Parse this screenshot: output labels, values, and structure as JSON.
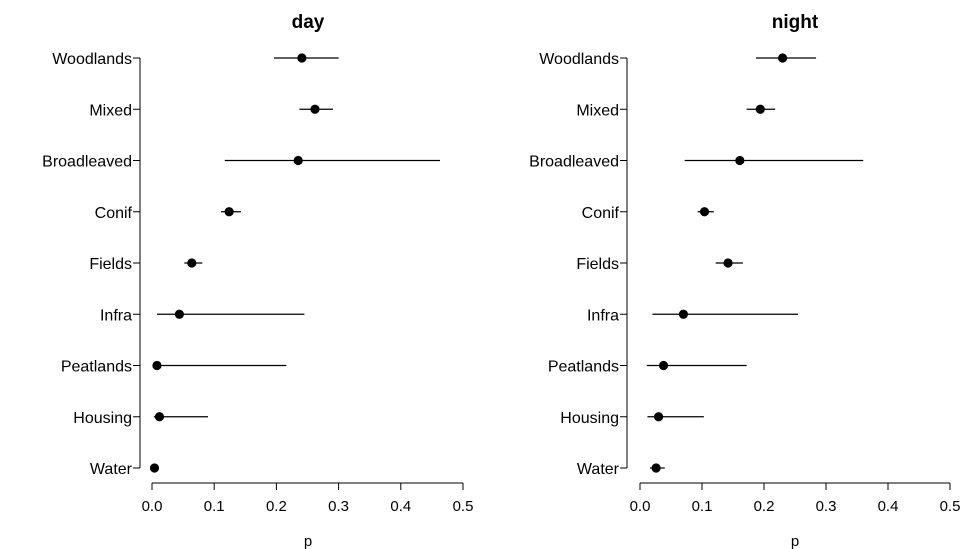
{
  "chart_data": [
    {
      "type": "scatter",
      "title": "day",
      "xlabel": "p",
      "ylabel": "",
      "xlim": [
        0,
        0.5
      ],
      "xticks": [
        "0.0",
        "0.1",
        "0.2",
        "0.3",
        "0.4",
        "0.5"
      ],
      "categories": [
        "Woodlands",
        "Mixed",
        "Broadleaved",
        "Conif",
        "Fields",
        "Infra",
        "Peatlands",
        "Housing",
        "Water"
      ],
      "estimate": [
        0.241,
        0.262,
        0.235,
        0.124,
        0.064,
        0.044,
        0.008,
        0.012,
        0.004
      ],
      "lower": [
        0.196,
        0.237,
        0.117,
        0.111,
        0.052,
        0.008,
        0.002,
        0.003,
        0.001
      ],
      "upper": [
        0.3,
        0.291,
        0.463,
        0.143,
        0.081,
        0.245,
        0.216,
        0.09,
        0.011
      ],
      "grid": false,
      "legend": "none"
    },
    {
      "type": "scatter",
      "title": "night",
      "xlabel": "p",
      "ylabel": "",
      "xlim": [
        0,
        0.5
      ],
      "xticks": [
        "0.0",
        "0.1",
        "0.2",
        "0.3",
        "0.4",
        "0.5"
      ],
      "categories": [
        "Woodlands",
        "Mixed",
        "Broadleaved",
        "Conif",
        "Fields",
        "Infra",
        "Peatlands",
        "Housing",
        "Water"
      ],
      "estimate": [
        0.23,
        0.194,
        0.161,
        0.104,
        0.142,
        0.07,
        0.038,
        0.03,
        0.026
      ],
      "lower": [
        0.187,
        0.172,
        0.072,
        0.093,
        0.122,
        0.02,
        0.011,
        0.012,
        0.016
      ],
      "upper": [
        0.284,
        0.218,
        0.36,
        0.119,
        0.166,
        0.255,
        0.172,
        0.103,
        0.04
      ],
      "grid": false,
      "legend": "none"
    }
  ]
}
